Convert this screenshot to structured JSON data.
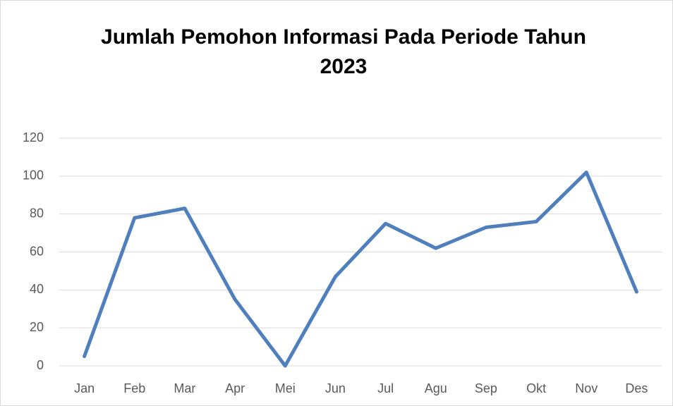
{
  "chart_data": {
    "type": "line",
    "title": "Jumlah Pemohon Informasi Pada Periode Tahun 2023",
    "categories": [
      "Jan",
      "Feb",
      "Mar",
      "Apr",
      "Mei",
      "Jun",
      "Jul",
      "Agu",
      "Sep",
      "Okt",
      "Nov",
      "Des"
    ],
    "values": [
      5,
      78,
      83,
      35,
      0,
      47,
      75,
      62,
      73,
      76,
      102,
      39
    ],
    "color": "#4f7fbd",
    "ylim": [
      0,
      120
    ],
    "yticks": [
      0,
      20,
      40,
      60,
      80,
      100,
      120
    ],
    "grid": true
  }
}
